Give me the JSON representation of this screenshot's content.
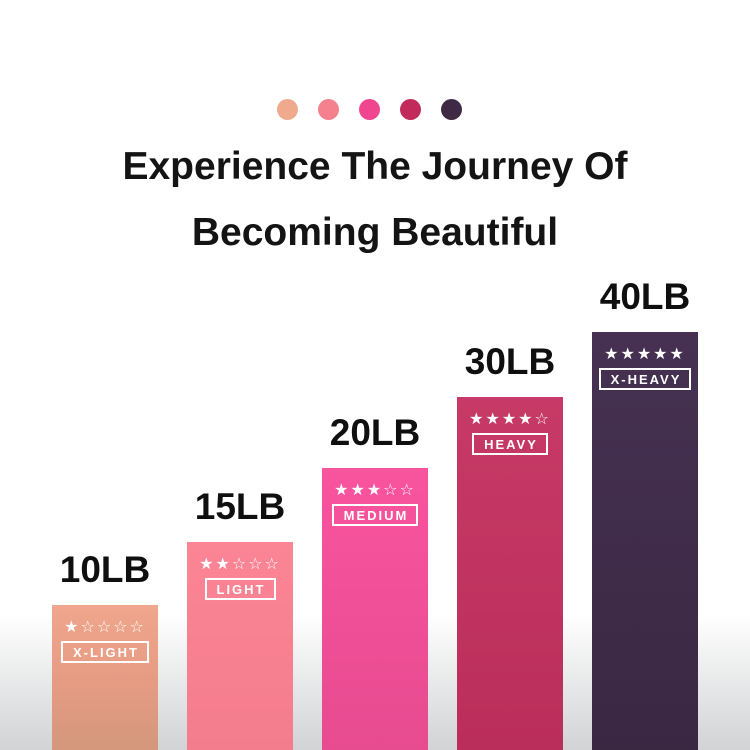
{
  "page": {
    "background_top_color": "#ffffff",
    "background_bottom_color": "#d1d3d4"
  },
  "header": {
    "title_line1": "Experience The Journey Of",
    "title_line2": "Becoming Beautiful",
    "title_color": "#141414",
    "swatch_dots": [
      {
        "name": "x-light",
        "color": "#efa98c"
      },
      {
        "name": "light",
        "color": "#f5818f"
      },
      {
        "name": "medium",
        "color": "#f0458f"
      },
      {
        "name": "heavy",
        "color": "#c22a5b"
      },
      {
        "name": "x-heavy",
        "color": "#3e2a44"
      }
    ]
  },
  "chart_data": {
    "type": "bar",
    "title": "Experience The Journey Of Becoming Beautiful",
    "categories": [
      "10LB",
      "15LB",
      "20LB",
      "30LB",
      "40LB"
    ],
    "values": [
      10,
      15,
      20,
      30,
      40
    ],
    "unit": "LB",
    "xlabel": "",
    "ylabel": "",
    "axes_shown": false,
    "grid": false,
    "legend_position": "none",
    "bar_label_color": "#0f0f0f",
    "star_color": "#ffffff",
    "bars": [
      {
        "weight": "10LB",
        "value": 10,
        "level": "X-LIGHT",
        "stars_filled": 1,
        "stars_total": 5,
        "color": "#e89d84"
      },
      {
        "weight": "15LB",
        "value": 15,
        "level": "LIGHT",
        "stars_filled": 2,
        "stars_total": 5,
        "color": "#f98093"
      },
      {
        "weight": "20LB",
        "value": 20,
        "level": "MEDIUM",
        "stars_filled": 3,
        "stars_total": 5,
        "color": "#f8529c"
      },
      {
        "weight": "30LB",
        "value": 30,
        "level": "HEAVY",
        "stars_filled": 4,
        "stars_total": 5,
        "color": "#c43463"
      },
      {
        "weight": "40LB",
        "value": 40,
        "level": "X-HEAVY",
        "stars_filled": 5,
        "stars_total": 5,
        "color": "#443049"
      }
    ]
  }
}
